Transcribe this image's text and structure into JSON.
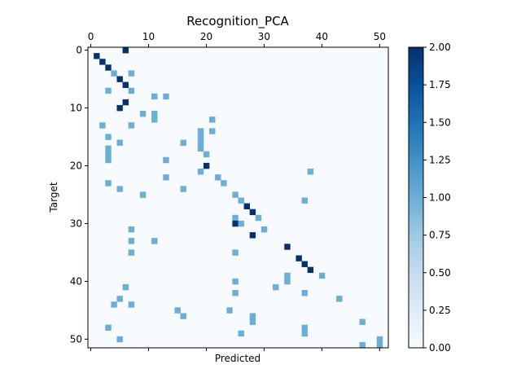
{
  "chart_data": {
    "type": "heatmap",
    "title": "Recognition_PCA",
    "xlabel": "Predicted",
    "ylabel": "Target",
    "n_classes": 52,
    "x_ticks": [
      0,
      10,
      20,
      30,
      40,
      50
    ],
    "y_ticks": [
      0,
      10,
      20,
      30,
      40,
      50
    ],
    "x_tick_position": "top",
    "colormap": "Blues",
    "background_color": "#f7fbff",
    "colorbar": {
      "min": 0.0,
      "max": 2.0,
      "ticks": [
        "0.00",
        "0.25",
        "0.50",
        "0.75",
        "1.00",
        "1.25",
        "1.50",
        "1.75",
        "2.00"
      ],
      "colors": [
        "#f7fbff",
        "#deebf7",
        "#c6dbef",
        "#9ecae1",
        "#6baed6",
        "#4292c6",
        "#2171b5",
        "#08519c",
        "#08306b"
      ]
    },
    "cells": [
      [
        0,
        6,
        2
      ],
      [
        1,
        1,
        2
      ],
      [
        2,
        2,
        2
      ],
      [
        3,
        3,
        2
      ],
      [
        4,
        4,
        1
      ],
      [
        4,
        7,
        1
      ],
      [
        5,
        5,
        2
      ],
      [
        6,
        6,
        2
      ],
      [
        7,
        3,
        1
      ],
      [
        7,
        7,
        1
      ],
      [
        8,
        11,
        1
      ],
      [
        8,
        13,
        1
      ],
      [
        9,
        6,
        2
      ],
      [
        10,
        5,
        2
      ],
      [
        11,
        9,
        1
      ],
      [
        11,
        11,
        1
      ],
      [
        12,
        11,
        1
      ],
      [
        12,
        21,
        1
      ],
      [
        13,
        2,
        1
      ],
      [
        13,
        7,
        1
      ],
      [
        14,
        19,
        1
      ],
      [
        14,
        21,
        1
      ],
      [
        15,
        3,
        1
      ],
      [
        15,
        19,
        1
      ],
      [
        16,
        5,
        1
      ],
      [
        16,
        16,
        1
      ],
      [
        16,
        19,
        1
      ],
      [
        17,
        3,
        1
      ],
      [
        17,
        19,
        1
      ],
      [
        18,
        3,
        1
      ],
      [
        18,
        20,
        1
      ],
      [
        19,
        3,
        1
      ],
      [
        19,
        13,
        1
      ],
      [
        20,
        20,
        2
      ],
      [
        21,
        19,
        1
      ],
      [
        21,
        38,
        1
      ],
      [
        22,
        13,
        1
      ],
      [
        22,
        22,
        1
      ],
      [
        23,
        3,
        1
      ],
      [
        23,
        23,
        1
      ],
      [
        24,
        5,
        1
      ],
      [
        24,
        16,
        1
      ],
      [
        25,
        9,
        1
      ],
      [
        25,
        25,
        1
      ],
      [
        26,
        26,
        1
      ],
      [
        26,
        37,
        1
      ],
      [
        27,
        27,
        2
      ],
      [
        28,
        28,
        2
      ],
      [
        29,
        25,
        1
      ],
      [
        29,
        29,
        1
      ],
      [
        30,
        25,
        2
      ],
      [
        30,
        26,
        1
      ],
      [
        31,
        7,
        1
      ],
      [
        31,
        30,
        1
      ],
      [
        32,
        28,
        2
      ],
      [
        33,
        7,
        1
      ],
      [
        33,
        11,
        1
      ],
      [
        34,
        34,
        2
      ],
      [
        35,
        7,
        1
      ],
      [
        35,
        25,
        1
      ],
      [
        36,
        36,
        2
      ],
      [
        37,
        37,
        2
      ],
      [
        38,
        38,
        2
      ],
      [
        39,
        34,
        1
      ],
      [
        39,
        40,
        1
      ],
      [
        40,
        25,
        1
      ],
      [
        40,
        34,
        1
      ],
      [
        41,
        6,
        1
      ],
      [
        41,
        32,
        1
      ],
      [
        42,
        25,
        1
      ],
      [
        42,
        37,
        1
      ],
      [
        43,
        5,
        1
      ],
      [
        43,
        43,
        1
      ],
      [
        44,
        4,
        1
      ],
      [
        44,
        7,
        1
      ],
      [
        45,
        15,
        1
      ],
      [
        45,
        24,
        1
      ],
      [
        46,
        16,
        1
      ],
      [
        46,
        28,
        1
      ],
      [
        47,
        28,
        1
      ],
      [
        47,
        47,
        1
      ],
      [
        48,
        3,
        1
      ],
      [
        48,
        37,
        1
      ],
      [
        49,
        26,
        1
      ],
      [
        49,
        37,
        1
      ],
      [
        50,
        5,
        1
      ],
      [
        50,
        50,
        1
      ],
      [
        51,
        47,
        1
      ],
      [
        51,
        50,
        1
      ]
    ]
  }
}
